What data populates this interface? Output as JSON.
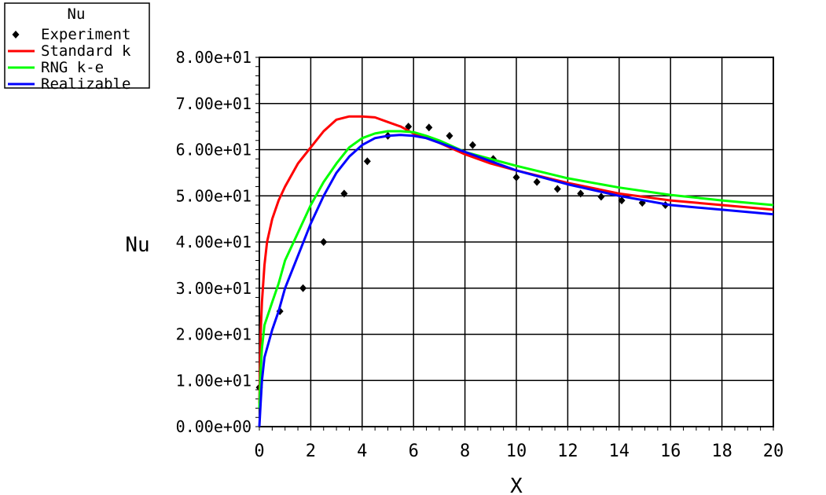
{
  "chart_data": {
    "type": "line",
    "title": "",
    "xlabel": "X",
    "ylabel": "Nu",
    "xlim": [
      0,
      20
    ],
    "ylim": [
      0,
      80
    ],
    "grid": true,
    "legend_position": "top-left",
    "legend_title": "Nu",
    "x_ticks": [
      "0",
      "2",
      "4",
      "6",
      "8",
      "10",
      "12",
      "14",
      "16",
      "18",
      "20"
    ],
    "x_tick_values": [
      0,
      2,
      4,
      6,
      8,
      10,
      12,
      14,
      16,
      18,
      20
    ],
    "y_ticks": [
      "0.00e+00",
      "1.00e+01",
      "2.00e+01",
      "3.00e+01",
      "4.00e+01",
      "5.00e+01",
      "6.00e+01",
      "7.00e+01",
      "8.00e+01"
    ],
    "y_tick_values": [
      0,
      10,
      20,
      30,
      40,
      50,
      60,
      70,
      80
    ],
    "series": [
      {
        "name": "Experiment",
        "kind": "scatter",
        "color": "#000000",
        "x": [
          0,
          0.8,
          1.7,
          2.5,
          3.3,
          4.2,
          5.0,
          5.8,
          6.6,
          7.4,
          8.3,
          9.1,
          10.0,
          10.8,
          11.6,
          12.5,
          13.3,
          14.1,
          14.9,
          15.8
        ],
        "y": [
          8.5,
          25,
          30,
          40,
          50.5,
          57.5,
          63,
          65,
          64.8,
          63,
          61,
          58,
          54,
          53,
          51.5,
          50.5,
          49.8,
          49,
          48.5,
          48
        ]
      },
      {
        "name": "Standard k",
        "kind": "line",
        "color": "#ff0000",
        "x": [
          0,
          0.05,
          0.1,
          0.2,
          0.3,
          0.5,
          0.75,
          1.0,
          1.5,
          2.0,
          2.5,
          3.0,
          3.5,
          4.0,
          4.5,
          5.0,
          5.5,
          6.0,
          7.0,
          8.0,
          9.0,
          10.0,
          12.0,
          14.0,
          16.0,
          18.0,
          20.0
        ],
        "y": [
          5,
          20,
          27,
          35,
          40,
          45,
          49,
          52,
          57,
          60.5,
          64,
          66.5,
          67.2,
          67.2,
          67,
          66,
          65,
          63.5,
          61.5,
          59,
          57,
          55.5,
          52.8,
          50.5,
          49,
          48,
          47
        ]
      },
      {
        "name": "RNG k-e",
        "kind": "line",
        "color": "#00ff00",
        "x": [
          0,
          0.05,
          0.1,
          0.2,
          0.5,
          0.75,
          1.0,
          1.5,
          2.0,
          2.5,
          3.0,
          3.5,
          4.0,
          4.5,
          5.0,
          5.5,
          6.0,
          6.5,
          7.0,
          8.0,
          9.0,
          10.0,
          12.0,
          14.0,
          16.0,
          18.0,
          20.0
        ],
        "y": [
          4,
          12,
          17,
          22,
          27,
          31,
          36,
          42,
          48,
          53,
          57,
          60.5,
          62.5,
          63.5,
          64,
          64,
          63.8,
          63,
          62,
          59.5,
          58,
          56.5,
          53.8,
          51.8,
          50.2,
          49,
          48
        ]
      },
      {
        "name": "Realizable",
        "kind": "line",
        "color": "#0000ff",
        "x": [
          0,
          0.05,
          0.1,
          0.2,
          0.5,
          0.75,
          1.0,
          1.5,
          2.0,
          2.5,
          3.0,
          3.5,
          4.0,
          4.5,
          5.0,
          5.5,
          6.0,
          6.5,
          7.0,
          8.0,
          9.0,
          10.0,
          12.0,
          14.0,
          16.0,
          18.0,
          20.0
        ],
        "y": [
          0,
          5,
          10,
          15,
          21,
          25,
          30,
          37,
          44,
          50,
          55,
          58.5,
          61,
          62.5,
          63,
          63.2,
          63,
          62.5,
          61.5,
          59.5,
          57.5,
          55.5,
          52.5,
          50,
          48,
          47,
          46
        ]
      }
    ]
  }
}
